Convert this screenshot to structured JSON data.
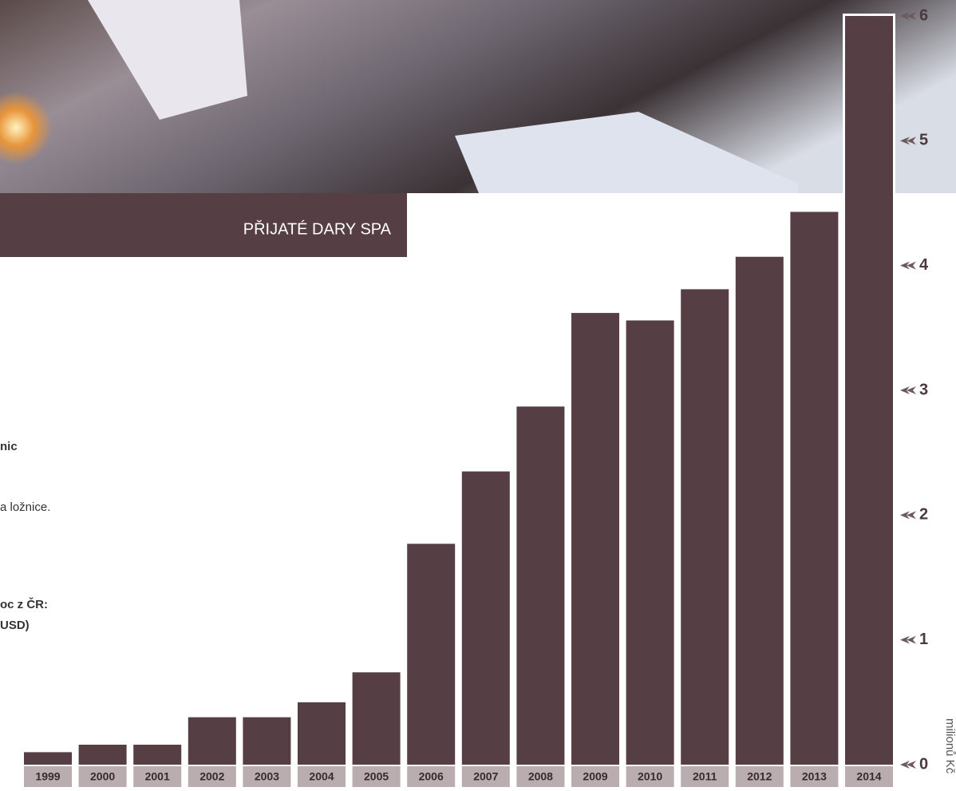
{
  "chart_data": {
    "type": "bar",
    "title": "PŘIJATÉ DARY SPA",
    "y_label": "milionů Kč",
    "categories": [
      "1999",
      "2000",
      "2001",
      "2002",
      "2003",
      "2004",
      "2005",
      "2006",
      "2007",
      "2008",
      "2009",
      "2010",
      "2011",
      "2012",
      "2013",
      "2014"
    ],
    "values": [
      0.1,
      0.16,
      0.16,
      0.38,
      0.38,
      0.5,
      0.74,
      1.77,
      2.35,
      2.87,
      3.62,
      3.56,
      3.81,
      4.07,
      4.43,
      6.0
    ],
    "color": "#553f44",
    "ylim": [
      0,
      6
    ],
    "yticks": [
      0,
      1,
      2,
      3,
      4,
      5,
      6
    ],
    "grid": false,
    "annotations": [
      "nic",
      "a ložnice.",
      "oc z ČR:",
      "USD)"
    ]
  }
}
